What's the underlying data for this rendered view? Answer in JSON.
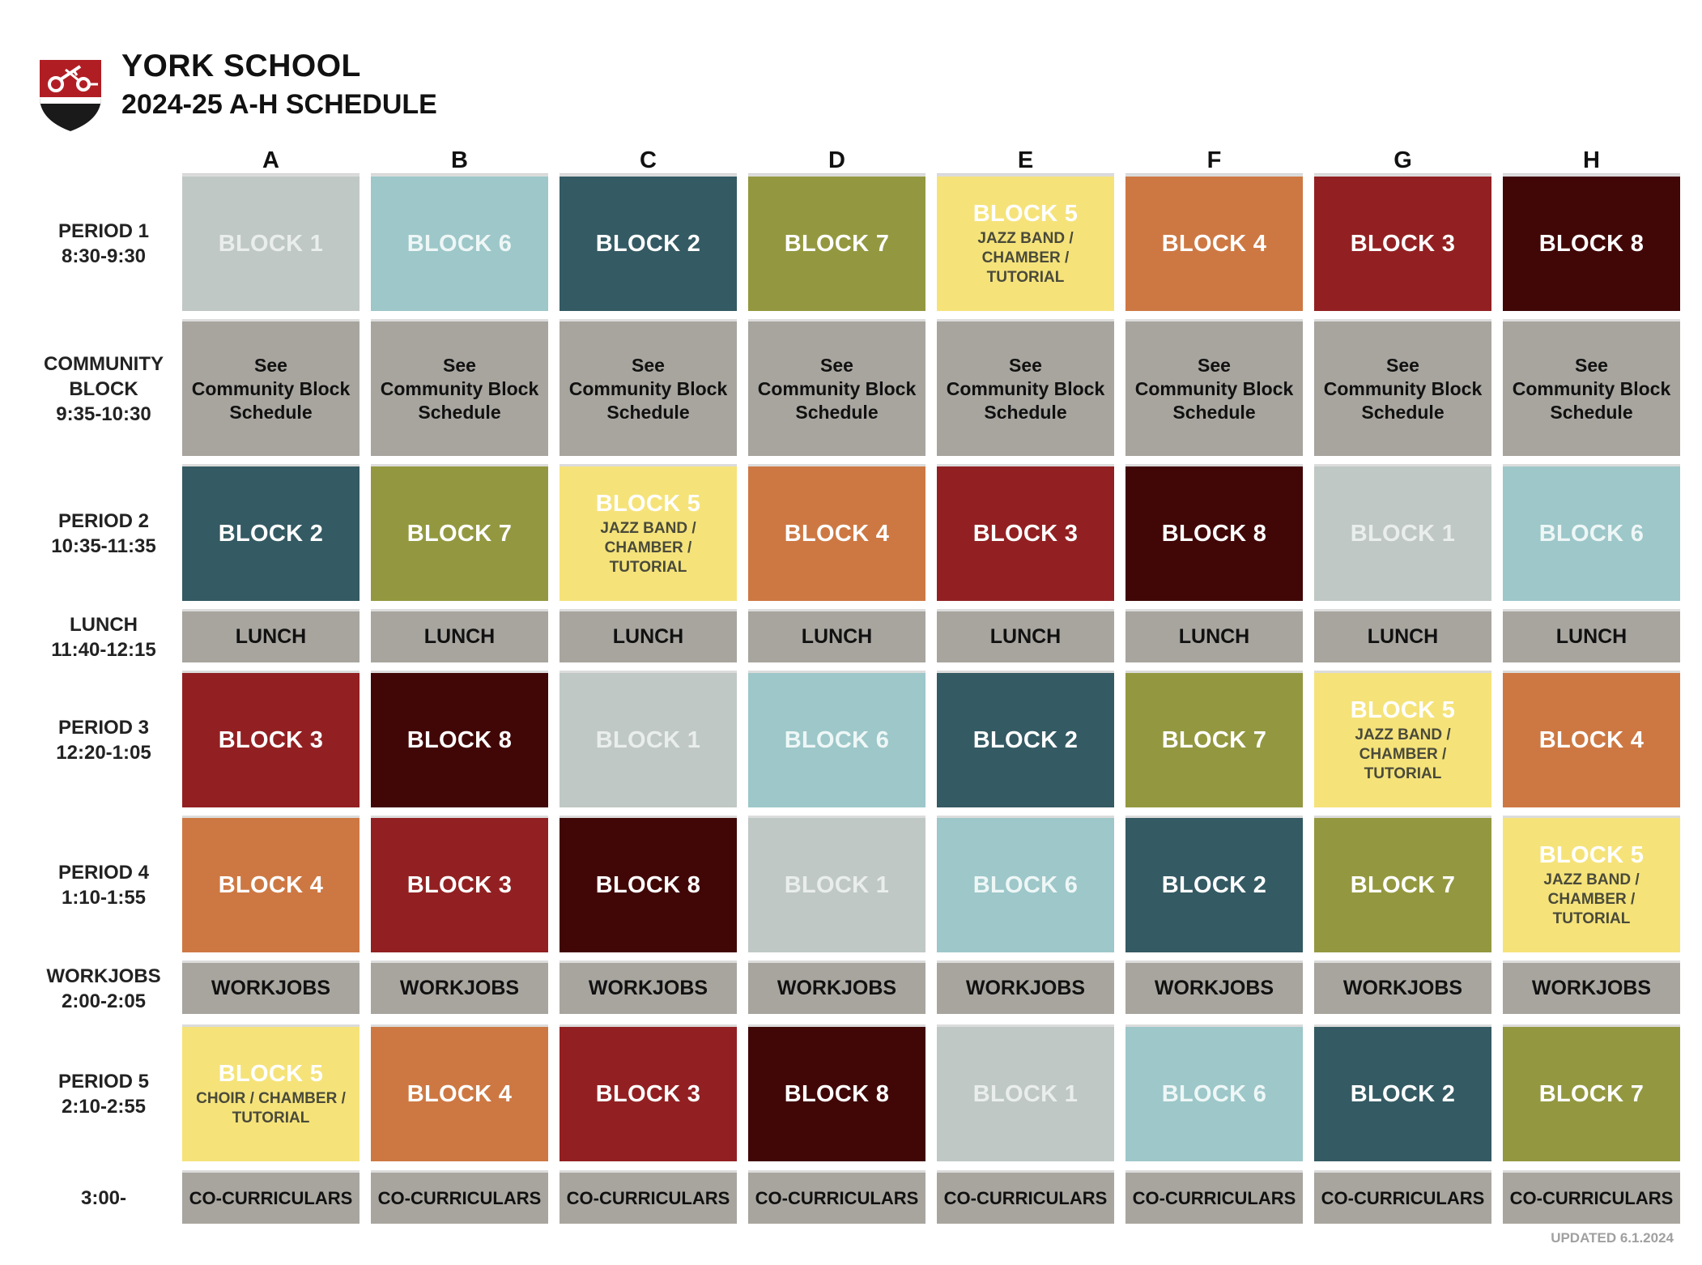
{
  "header": {
    "school_name": "YORK SCHOOL",
    "title": "2024-25 A-H SCHEDULE"
  },
  "days": [
    "A",
    "B",
    "C",
    "D",
    "E",
    "F",
    "G",
    "H"
  ],
  "colors": {
    "1": {
      "bg": "#bfc8c4",
      "fg": "#e9eeec"
    },
    "2": {
      "bg": "#345a63",
      "fg": "#ffffff"
    },
    "3": {
      "bg": "#922022",
      "fg": "#ffffff"
    },
    "4": {
      "bg": "#cd7843",
      "fg": "#ffffff"
    },
    "5": {
      "bg": "#f5e37a",
      "fg": "#ffffff",
      "sub": "#4a4a3a"
    },
    "6": {
      "bg": "#9dc7c9",
      "fg": "#eef6f6"
    },
    "7": {
      "bg": "#939840",
      "fg": "#ffffff"
    },
    "8": {
      "bg": "#410707",
      "fg": "#ffffff"
    },
    "gray": {
      "bg": "#a8a59f",
      "fg": "#111111"
    }
  },
  "rows": [
    {
      "id": "period1",
      "label": [
        "PERIOD 1",
        "8:30-9:30"
      ],
      "type": "blocks",
      "blocks": [
        1,
        6,
        2,
        7,
        5,
        4,
        3,
        8
      ]
    },
    {
      "id": "community",
      "label": [
        "COMMUNITY",
        "BLOCK",
        "9:35-10:30"
      ],
      "type": "community",
      "text": [
        "See",
        "Community Block",
        "Schedule"
      ]
    },
    {
      "id": "period2",
      "label": [
        "PERIOD 2",
        "10:35-11:35"
      ],
      "type": "blocks",
      "blocks": [
        2,
        7,
        5,
        4,
        3,
        8,
        1,
        6
      ]
    },
    {
      "id": "lunch",
      "label": [
        "LUNCH",
        "11:40-12:15"
      ],
      "type": "gray",
      "text": "LUNCH"
    },
    {
      "id": "period3",
      "label": [
        "PERIOD 3",
        "12:20-1:05"
      ],
      "type": "blocks",
      "blocks": [
        3,
        8,
        1,
        6,
        2,
        7,
        5,
        4
      ]
    },
    {
      "id": "period4",
      "label": [
        "PERIOD 4",
        "1:10-1:55"
      ],
      "type": "blocks",
      "blocks": [
        4,
        3,
        8,
        1,
        6,
        2,
        7,
        5
      ]
    },
    {
      "id": "workjobs",
      "label": [
        "WORKJOBS",
        "2:00-2:05"
      ],
      "type": "gray",
      "text": "WORKJOBS"
    },
    {
      "id": "period5",
      "label": [
        "PERIOD 5",
        "2:10-2:55"
      ],
      "type": "blocks",
      "blocks": [
        5,
        4,
        3,
        8,
        1,
        6,
        2,
        7
      ]
    },
    {
      "id": "cocurricular",
      "label": [
        "3:00-"
      ],
      "type": "cocurr",
      "text": "CO-CURRICULARS"
    }
  ],
  "block_label_prefix": "BLOCK ",
  "block5_sub": [
    "JAZZ BAND /",
    "CHAMBER /",
    "TUTORIAL"
  ],
  "block5_sub_period5": [
    "CHOIR / CHAMBER /",
    "TUTORIAL"
  ],
  "footer": {
    "updated": "UPDATED 6.1.2024"
  }
}
